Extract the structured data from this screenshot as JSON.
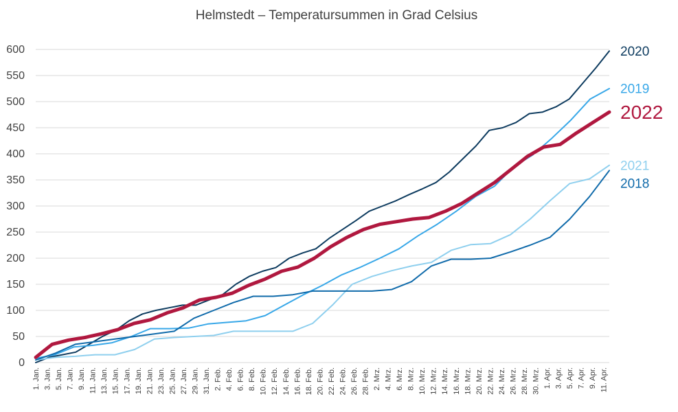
{
  "chart_data": {
    "type": "line",
    "title": "Helmstedt – Temperatursummen in Grad Celsius",
    "xlabel": "",
    "ylabel": "",
    "ylim": [
      0,
      600
    ],
    "yticks": [
      0,
      50,
      100,
      150,
      200,
      250,
      300,
      350,
      400,
      450,
      500,
      550,
      600
    ],
    "grid": true,
    "legend_placement": "right (labels at line ends)",
    "x_tick_labels": [
      "1. Jan.",
      "3. Jan.",
      "5. Jan.",
      "7. Jan.",
      "9. Jan.",
      "11. Jan.",
      "13. Jan.",
      "15. Jan.",
      "17. Jan.",
      "19. Jan.",
      "21. Jan.",
      "23. Jan.",
      "25. Jan.",
      "27. Jan.",
      "29. Jan.",
      "31. Jan.",
      "2. Feb.",
      "4. Feb.",
      "6. Feb.",
      "8. Feb.",
      "10. Feb.",
      "12. Feb.",
      "14. Feb.",
      "16. Feb.",
      "18. Feb.",
      "20. Feb.",
      "22. Feb.",
      "24. Feb.",
      "26. Feb.",
      "28. Feb.",
      "2. Mrz.",
      "4. Mrz.",
      "6. Mrz.",
      "8. Mrz.",
      "10. Mrz.",
      "12. Mrz.",
      "14. Mrz.",
      "16. Mrz.",
      "18. Mrz.",
      "20. Mrz.",
      "22. Mrz.",
      "24. Mrz.",
      "26. Mrz.",
      "28. Mrz.",
      "30. Mrz.",
      "1. Apr.",
      "3. Apr.",
      "5. Apr.",
      "7. Apr.",
      "9. Apr.",
      "11. Apr."
    ],
    "x_days": [
      1,
      3,
      5,
      7,
      9,
      11,
      13,
      15,
      17,
      19,
      21,
      23,
      25,
      27,
      29,
      31,
      33,
      35,
      37,
      39,
      41,
      43,
      45,
      47,
      49,
      51,
      53,
      55,
      57,
      59,
      61,
      63,
      65,
      67,
      69,
      71,
      73,
      75,
      77,
      79,
      81,
      83,
      85,
      87,
      89,
      91,
      93,
      95,
      97,
      99,
      101
    ],
    "series": [
      {
        "name": "2020",
        "color": "#0c3a5e",
        "width": 2,
        "values": [
          0,
          10,
          15,
          20,
          35,
          50,
          62,
          80,
          93,
          100,
          105,
          110,
          110,
          120,
          130,
          150,
          165,
          175,
          182,
          200,
          210,
          218,
          238,
          255,
          272,
          290,
          300,
          310,
          322,
          333,
          345,
          365,
          390,
          415,
          445,
          450,
          460,
          477,
          480,
          490,
          505,
          535,
          565,
          597
        ]
      },
      {
        "name": "2019",
        "color": "#37a7e8",
        "width": 2,
        "values": [
          8,
          15,
          30,
          33,
          38,
          50,
          65,
          65,
          66,
          74,
          77,
          80,
          90,
          110,
          130,
          148,
          168,
          183,
          200,
          218,
          243,
          265,
          290,
          318,
          338,
          375,
          398,
          430,
          465,
          505,
          525
        ]
      },
      {
        "name": "2022",
        "color": "#b0183f",
        "width": 5,
        "values": [
          10,
          35,
          43,
          48,
          55,
          63,
          75,
          82,
          95,
          105,
          120,
          125,
          133,
          148,
          160,
          175,
          183,
          200,
          222,
          240,
          255,
          265,
          270,
          275,
          278,
          290,
          305,
          325,
          345,
          370,
          395,
          413,
          418,
          440,
          460,
          480
        ]
      },
      {
        "name": "2021",
        "color": "#8ecfee",
        "width": 2,
        "values": [
          5,
          10,
          12,
          15,
          15,
          25,
          45,
          48,
          50,
          52,
          60,
          60,
          60,
          60,
          75,
          110,
          150,
          165,
          176,
          185,
          192,
          215,
          226,
          228,
          245,
          275,
          310,
          343,
          352,
          378
        ]
      },
      {
        "name": "2018",
        "color": "#0f6aaa",
        "width": 2,
        "values": [
          5,
          18,
          35,
          40,
          45,
          50,
          55,
          60,
          85,
          100,
          115,
          127,
          127,
          130,
          137,
          137,
          137,
          137,
          140,
          155,
          185,
          198,
          198,
          200,
          212,
          225,
          240,
          275,
          318,
          368
        ]
      }
    ]
  }
}
